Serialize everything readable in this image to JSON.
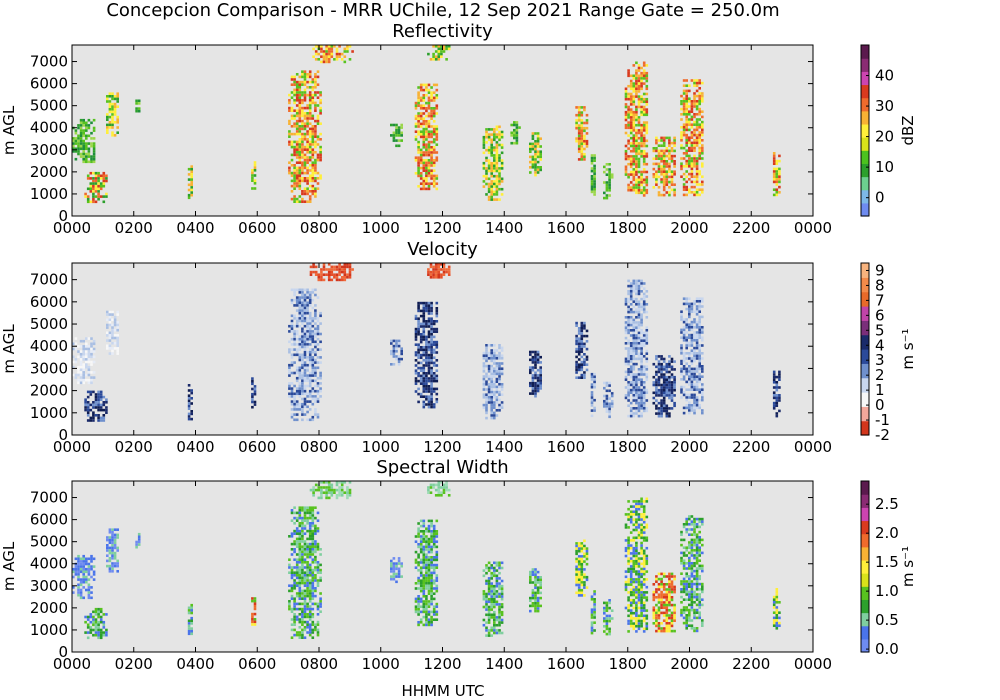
{
  "figure": {
    "suptitle": "Concepcion Comparison - MRR UChile, 12 Sep 2021 Range Gate = 250.0m",
    "xlabel": "HHMM UTC",
    "background_color": "#e5e5e5"
  },
  "chart_data": [
    {
      "type": "heatmap",
      "title": "Reflectivity",
      "ylabel": "m AGL",
      "colorbar_label": "dBZ",
      "x_ticks": [
        "0000",
        "0200",
        "0400",
        "0600",
        "0800",
        "1000",
        "1200",
        "1400",
        "1600",
        "1800",
        "2000",
        "2200",
        "0000"
      ],
      "y_ticks": [
        "0",
        "1000",
        "2000",
        "3000",
        "4000",
        "5000",
        "6000",
        "7000"
      ],
      "xlim_hours": [
        0,
        24
      ],
      "ylim_m": [
        0,
        7750
      ],
      "colorbar_ticks": [
        "0",
        "10",
        "20",
        "30",
        "40"
      ],
      "colorbar_range": [
        -6,
        50
      ],
      "colorbar_colors": [
        "#6e8bf0",
        "#7db8e8",
        "#6ccf8f",
        "#2ca02c",
        "#4cc21f",
        "#d9e21a",
        "#ffef3a",
        "#f8b234",
        "#ef6b2c",
        "#d93a1e",
        "#cc44b0",
        "#8a2b73",
        "#5b1a4e"
      ],
      "echoes": [
        {
          "t0": 0.0,
          "t1": 0.8,
          "z0": 2400,
          "z1": 4400,
          "v": "green"
        },
        {
          "t0": 0.4,
          "t1": 1.2,
          "z0": 700,
          "z1": 2000,
          "v": "mixed"
        },
        {
          "t0": 1.1,
          "t1": 1.55,
          "z0": 3700,
          "z1": 5600,
          "v": "yellow"
        },
        {
          "t0": 2.05,
          "t1": 2.2,
          "z0": 4700,
          "z1": 5400,
          "v": "green"
        },
        {
          "t0": 3.75,
          "t1": 3.95,
          "z0": 700,
          "z1": 2300,
          "v": "yellow"
        },
        {
          "t0": 5.8,
          "t1": 5.95,
          "z0": 1200,
          "z1": 2600,
          "v": "yellow"
        },
        {
          "t0": 7.0,
          "t1": 8.1,
          "z0": 700,
          "z1": 6600,
          "v": "orange"
        },
        {
          "t0": 7.7,
          "t1": 9.1,
          "z0": 7000,
          "z1": 7750,
          "v": "orange"
        },
        {
          "t0": 10.3,
          "t1": 10.7,
          "z0": 3200,
          "z1": 4300,
          "v": "green"
        },
        {
          "t0": 11.1,
          "t1": 11.9,
          "z0": 1200,
          "z1": 6000,
          "v": "orange"
        },
        {
          "t0": 11.5,
          "t1": 12.3,
          "z0": 7100,
          "z1": 7750,
          "v": "yellow"
        },
        {
          "t0": 13.3,
          "t1": 14.0,
          "z0": 800,
          "z1": 4100,
          "v": "yellow"
        },
        {
          "t0": 14.2,
          "t1": 14.5,
          "z0": 3300,
          "z1": 4300,
          "v": "green"
        },
        {
          "t0": 14.8,
          "t1": 15.2,
          "z0": 1800,
          "z1": 3800,
          "v": "yellow"
        },
        {
          "t0": 16.3,
          "t1": 16.7,
          "z0": 2600,
          "z1": 5100,
          "v": "orange"
        },
        {
          "t0": 16.8,
          "t1": 17.0,
          "z0": 900,
          "z1": 2800,
          "v": "green"
        },
        {
          "t0": 17.2,
          "t1": 17.5,
          "z0": 800,
          "z1": 2400,
          "v": "green"
        },
        {
          "t0": 17.9,
          "t1": 18.7,
          "z0": 900,
          "z1": 7000,
          "v": "orange"
        },
        {
          "t0": 18.8,
          "t1": 19.6,
          "z0": 900,
          "z1": 3600,
          "v": "orange"
        },
        {
          "t0": 19.7,
          "t1": 20.5,
          "z0": 1000,
          "z1": 6200,
          "v": "orange"
        },
        {
          "t0": 22.7,
          "t1": 22.95,
          "z0": 900,
          "z1": 2900,
          "v": "orange"
        }
      ]
    },
    {
      "type": "heatmap",
      "title": "Velocity",
      "ylabel": "m AGL",
      "colorbar_label": "m s⁻¹",
      "x_ticks": [
        "0000",
        "0200",
        "0400",
        "0600",
        "0800",
        "1000",
        "1200",
        "1400",
        "1600",
        "1800",
        "2000",
        "2200",
        "0000"
      ],
      "y_ticks": [
        "0",
        "1000",
        "2000",
        "3000",
        "4000",
        "5000",
        "6000",
        "7000"
      ],
      "xlim_hours": [
        0,
        24
      ],
      "ylim_m": [
        0,
        7750
      ],
      "colorbar_ticks": [
        "-2",
        "-1",
        "0",
        "1",
        "2",
        "3",
        "4",
        "5",
        "6",
        "7",
        "8",
        "9"
      ],
      "colorbar_range": [
        -2,
        9.5
      ],
      "colorbar_colors": [
        "#d2361c",
        "#f3a79b",
        "#f7f7f7",
        "#c8d6ee",
        "#6f90cd",
        "#2b4a9a",
        "#1a2a6a",
        "#7a2e7a",
        "#c144a8",
        "#e86a2a",
        "#f28a4a",
        "#f7b37e"
      ],
      "echoes": [
        {
          "t0": 0.0,
          "t1": 0.8,
          "z0": 2400,
          "z1": 4400,
          "v": "light"
        },
        {
          "t0": 0.4,
          "t1": 1.2,
          "z0": 700,
          "z1": 2000,
          "v": "dark"
        },
        {
          "t0": 1.1,
          "t1": 1.55,
          "z0": 3700,
          "z1": 5600,
          "v": "light"
        },
        {
          "t0": 3.75,
          "t1": 3.95,
          "z0": 700,
          "z1": 2300,
          "v": "dark"
        },
        {
          "t0": 5.8,
          "t1": 5.95,
          "z0": 1200,
          "z1": 2600,
          "v": "dark"
        },
        {
          "t0": 7.0,
          "t1": 8.1,
          "z0": 700,
          "z1": 6600,
          "v": "mid"
        },
        {
          "t0": 7.7,
          "t1": 9.1,
          "z0": 7000,
          "z1": 7750,
          "v": "red"
        },
        {
          "t0": 10.3,
          "t1": 10.7,
          "z0": 3200,
          "z1": 4300,
          "v": "mid"
        },
        {
          "t0": 11.1,
          "t1": 11.9,
          "z0": 1200,
          "z1": 6000,
          "v": "dark"
        },
        {
          "t0": 11.5,
          "t1": 12.3,
          "z0": 7100,
          "z1": 7750,
          "v": "red"
        },
        {
          "t0": 13.3,
          "t1": 14.0,
          "z0": 800,
          "z1": 4100,
          "v": "mid"
        },
        {
          "t0": 14.8,
          "t1": 15.2,
          "z0": 1800,
          "z1": 3800,
          "v": "dark"
        },
        {
          "t0": 16.3,
          "t1": 16.7,
          "z0": 2600,
          "z1": 5100,
          "v": "dark"
        },
        {
          "t0": 16.8,
          "t1": 17.0,
          "z0": 900,
          "z1": 2800,
          "v": "mid"
        },
        {
          "t0": 17.2,
          "t1": 17.5,
          "z0": 800,
          "z1": 2400,
          "v": "mid"
        },
        {
          "t0": 17.9,
          "t1": 18.7,
          "z0": 900,
          "z1": 7000,
          "v": "mid"
        },
        {
          "t0": 18.8,
          "t1": 19.6,
          "z0": 900,
          "z1": 3600,
          "v": "dark"
        },
        {
          "t0": 19.7,
          "t1": 20.5,
          "z0": 1000,
          "z1": 6200,
          "v": "mid"
        },
        {
          "t0": 22.7,
          "t1": 22.95,
          "z0": 900,
          "z1": 2900,
          "v": "dark"
        }
      ]
    },
    {
      "type": "heatmap",
      "title": "Spectral Width",
      "ylabel": "m AGL",
      "colorbar_label": "m s⁻¹",
      "x_ticks": [
        "0000",
        "0200",
        "0400",
        "0600",
        "0800",
        "1000",
        "1200",
        "1400",
        "1600",
        "1800",
        "2000",
        "2200",
        "0000"
      ],
      "y_ticks": [
        "0",
        "1000",
        "2000",
        "3000",
        "4000",
        "5000",
        "6000",
        "7000"
      ],
      "xlim_hours": [
        0,
        24
      ],
      "ylim_m": [
        0,
        7750
      ],
      "colorbar_ticks": [
        "0.0",
        "0.5",
        "1.0",
        "1.5",
        "2.0",
        "2.5"
      ],
      "colorbar_range": [
        -0.05,
        2.9
      ],
      "colorbar_colors": [
        "#6e8bf0",
        "#4a74ea",
        "#7fcf9f",
        "#2ca02c",
        "#58c21f",
        "#d9e21a",
        "#ffef3a",
        "#f8b234",
        "#ef6b2c",
        "#d93a1e",
        "#cc44b0",
        "#8a2b73",
        "#5b1a4e"
      ],
      "echoes": [
        {
          "t0": 0.0,
          "t1": 0.8,
          "z0": 2400,
          "z1": 4400,
          "v": "blue"
        },
        {
          "t0": 0.4,
          "t1": 1.2,
          "z0": 700,
          "z1": 2000,
          "v": "green"
        },
        {
          "t0": 1.1,
          "t1": 1.55,
          "z0": 3700,
          "z1": 5600,
          "v": "blue"
        },
        {
          "t0": 2.05,
          "t1": 2.2,
          "z0": 4700,
          "z1": 5400,
          "v": "blue"
        },
        {
          "t0": 3.75,
          "t1": 3.95,
          "z0": 700,
          "z1": 2300,
          "v": "green"
        },
        {
          "t0": 5.8,
          "t1": 5.95,
          "z0": 1200,
          "z1": 2600,
          "v": "orange"
        },
        {
          "t0": 7.0,
          "t1": 8.1,
          "z0": 700,
          "z1": 6600,
          "v": "green"
        },
        {
          "t0": 7.7,
          "t1": 9.1,
          "z0": 7000,
          "z1": 7750,
          "v": "teal"
        },
        {
          "t0": 10.3,
          "t1": 10.7,
          "z0": 3200,
          "z1": 4300,
          "v": "blue"
        },
        {
          "t0": 11.1,
          "t1": 11.9,
          "z0": 1200,
          "z1": 6000,
          "v": "green"
        },
        {
          "t0": 11.5,
          "t1": 12.3,
          "z0": 7100,
          "z1": 7750,
          "v": "teal"
        },
        {
          "t0": 13.3,
          "t1": 14.0,
          "z0": 800,
          "z1": 4100,
          "v": "green"
        },
        {
          "t0": 14.8,
          "t1": 15.2,
          "z0": 1800,
          "z1": 3800,
          "v": "green"
        },
        {
          "t0": 16.3,
          "t1": 16.7,
          "z0": 2600,
          "z1": 5100,
          "v": "yellow"
        },
        {
          "t0": 16.8,
          "t1": 17.0,
          "z0": 900,
          "z1": 2800,
          "v": "green"
        },
        {
          "t0": 17.2,
          "t1": 17.5,
          "z0": 800,
          "z1": 2400,
          "v": "green"
        },
        {
          "t0": 17.9,
          "t1": 18.7,
          "z0": 900,
          "z1": 7000,
          "v": "yellow"
        },
        {
          "t0": 18.8,
          "t1": 19.6,
          "z0": 900,
          "z1": 3600,
          "v": "orange"
        },
        {
          "t0": 19.7,
          "t1": 20.5,
          "z0": 1000,
          "z1": 6200,
          "v": "green"
        },
        {
          "t0": 22.7,
          "t1": 22.95,
          "z0": 900,
          "z1": 2900,
          "v": "yellow"
        }
      ]
    }
  ]
}
